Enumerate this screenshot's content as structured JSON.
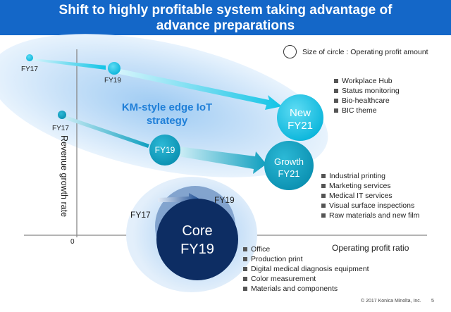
{
  "title": {
    "line1": "Shift to highly profitable system taking advantage of",
    "line2": "advance preparations"
  },
  "legend": {
    "text": "Size of circle : Operating profit amount"
  },
  "strategy": {
    "line1": "KM-style edge IoT",
    "line2": "strategy"
  },
  "axes": {
    "y_label": "Revenue growth rate",
    "x_label": "Operating profit ratio",
    "origin": "0"
  },
  "nodes": {
    "new_fy17": "FY17",
    "new_fy19": "FY19",
    "new_fy21_line1": "New",
    "new_fy21_line2": "FY21",
    "growth_fy17": "FY17",
    "growth_fy19": "FY19",
    "growth_fy21_line1": "Growth",
    "growth_fy21_line2": "FY21",
    "core_fy17": "FY17",
    "core_fy19_outer": "FY19",
    "core_line1": "Core",
    "core_line2": "FY19"
  },
  "lists": {
    "new": [
      "Workplace Hub",
      "Status monitoring",
      "Bio-healthcare",
      "BIC theme"
    ],
    "growth": [
      "Industrial printing",
      "Marketing services",
      "Medical IT services",
      "Visual surface inspections",
      "Raw materials and new film"
    ],
    "core": [
      "Office",
      "Production print",
      "Digital medical diagnosis equipment",
      "Color measurement",
      "Materials and components"
    ]
  },
  "footer": {
    "copyright": "© 2017 Konica Minolta, Inc.",
    "page": "5"
  },
  "colors": {
    "header": "#1467c8",
    "cyan_circle": "#12c4e6",
    "growth_circle": "#0f9fbf",
    "core_circle": "#0d2d63",
    "strategy_text": "#1f7fd8"
  }
}
